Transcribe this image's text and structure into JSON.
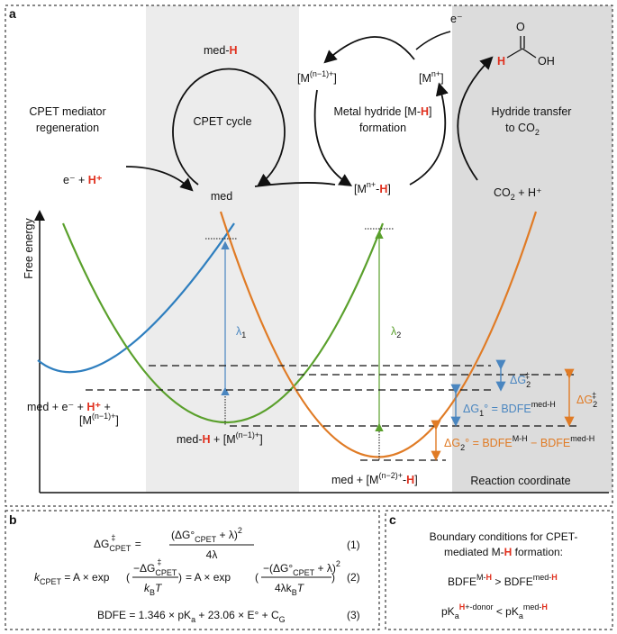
{
  "panels": {
    "a": "a",
    "b": "b",
    "c": "c"
  },
  "cycle": {
    "mediator_regen_line1": "CPET mediator",
    "mediator_regen_line2": "regeneration",
    "electron_proton": "e⁻ + ",
    "proton": "H⁺",
    "med_H_left": "med-",
    "H": "H",
    "cpet_cycle": "CPET cycle",
    "med": "med",
    "metal_hydride_line1": "Metal hydride [M-",
    "metal_hydride_close": "]",
    "metal_hydride_line2": "formation",
    "mn1": "[M",
    "mn1_sup": "(n−1)+",
    "mn1_close": "]",
    "electron": "e⁻",
    "mn": "[M",
    "mn_sup": "n+",
    "mn_close": "]",
    "mnH_open": "[M",
    "mnH_sup": "n+",
    "mnH_dash": "-",
    "mnH_close": "]",
    "hydride_transfer_line1": "Hydride transfer",
    "hydride_transfer_line2": "to CO",
    "co2_sub": "2",
    "formic_O": "O",
    "formic_H": "H",
    "formic_OH": "OH",
    "co2_plus_h": "CO",
    "co2_plus_h_tail": " + H⁺"
  },
  "energy_plot": {
    "y_axis_label": "Free energy",
    "x_axis_label": "Reaction coordinate",
    "lambda1": "λ",
    "lambda1_sub": "1",
    "lambda2": "λ",
    "lambda2_sub": "2",
    "dG2_ddag_blue": "ΔG",
    "dG2_ddag_blue_sub": "2",
    "dG2_ddag_blue_sup": "‡",
    "dG1_label": "ΔG",
    "dG1_sub": "1",
    "dG1_rest": "° = BDFE",
    "dG1_sup": "med-H",
    "dG2_orange_right": "ΔG",
    "dG2_orange_right_sub": "2",
    "dG2_orange_right_sup": "‡",
    "dG2_label": "ΔG",
    "dG2_sub": "2",
    "dG2_rest": "° = BDFE",
    "dG2_sup1": "M-H",
    "dG2_mid": " − BDFE",
    "dG2_sup2": "med-H",
    "state1_line1a": "med + e⁻ + ",
    "state1_H": "H⁺",
    "state1_plus": " +",
    "state1_line2": "[M",
    "state1_sup": "(n−1)+",
    "state1_close": "]",
    "state2_a": "med-",
    "state2_H": "H",
    "state2_b": " + [M",
    "state2_sup": "(n−1)+",
    "state2_close": "]",
    "state3_a": "med + [M",
    "state3_sup": "(n−2)+",
    "state3_b": "-",
    "state3_H": "H",
    "state3_close": "]",
    "colors": {
      "blue": "#2f7fbf",
      "green": "#5aa02c",
      "orange": "#e07b25",
      "shade_light": "#ececec",
      "shade_dark": "#dcdcdc"
    }
  },
  "equations": {
    "eq1_lhs": "ΔG",
    "eq1_lhs_sub": "CPET",
    "eq1_lhs_sup": "‡",
    "eq1_eq": " = ",
    "eq1_num": "(ΔG°",
    "eq1_num_sub": "CPET",
    "eq1_num_tail": " + λ)",
    "eq1_num_sup": "2",
    "eq1_den": "4λ",
    "eq1_no": "(1)",
    "eq2_k": "k",
    "eq2_k_sub": "CPET",
    "eq2_a": " = A × exp",
    "eq2_num1": "−ΔG",
    "eq2_num1_sub": "CPET",
    "eq2_num1_sup": "‡",
    "eq2_den1": "k",
    "eq2_den1_sub": "B",
    "eq2_den1_T": "T",
    "eq2_b": " = A × exp",
    "eq2_num2": "−(ΔG°",
    "eq2_num2_sub": "CPET",
    "eq2_num2_tail": " + λ)",
    "eq2_num2_sup": "2",
    "eq2_den2": "4λk",
    "eq2_den2_sub": "B",
    "eq2_den2_T": "T",
    "eq2_no": "(2)",
    "eq3_a": "BDFE = 1.346 × pK",
    "eq3_sub": "a",
    "eq3_b": " + 23.06 × E° + C",
    "eq3_sub2": "G",
    "eq3_no": "(3)"
  },
  "boundary": {
    "title_line1": "Boundary conditions for CPET-",
    "title_line2a": "mediated M-",
    "title_H": "H",
    "title_line2b": " formation:",
    "cond1_a": "BDFE",
    "cond1_sup1a": "M-",
    "cond1_sup1H": "H",
    "cond1_gt": " > BDFE",
    "cond1_sup2a": "med-",
    "cond1_sup2H": "H",
    "cond2_a": "pK",
    "cond2_sub1": "a",
    "cond2_supH": "H",
    "cond2_sup1": "+-donor",
    "cond2_lt": " < pK",
    "cond2_sub2": "a",
    "cond2_sup2a": "med-",
    "cond2_sup2H": "H"
  }
}
